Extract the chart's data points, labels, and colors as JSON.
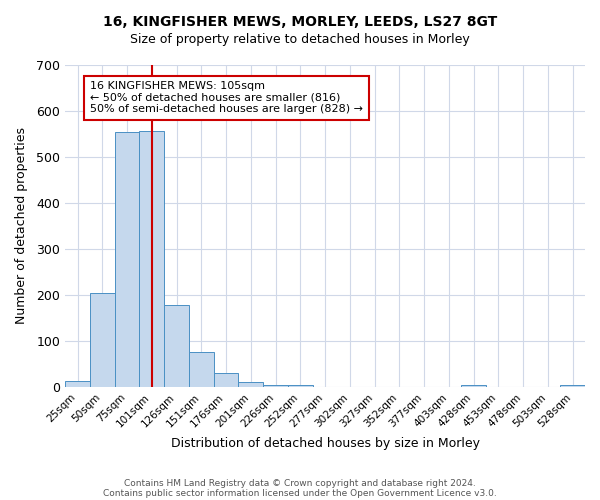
{
  "title": "16, KINGFISHER MEWS, MORLEY, LEEDS, LS27 8GT",
  "subtitle": "Size of property relative to detached houses in Morley",
  "xlabel": "Distribution of detached houses by size in Morley",
  "ylabel": "Number of detached properties",
  "bin_labels": [
    "25sqm",
    "50sqm",
    "75sqm",
    "101sqm",
    "126sqm",
    "151sqm",
    "176sqm",
    "201sqm",
    "226sqm",
    "252sqm",
    "277sqm",
    "302sqm",
    "327sqm",
    "352sqm",
    "377sqm",
    "403sqm",
    "428sqm",
    "453sqm",
    "478sqm",
    "503sqm",
    "528sqm"
  ],
  "bar_values": [
    12,
    204,
    554,
    557,
    178,
    75,
    30,
    11,
    5,
    5,
    0,
    0,
    0,
    0,
    0,
    0,
    5,
    0,
    0,
    0,
    5
  ],
  "bar_color": "#c5d8ed",
  "bar_edge_color": "#4a90c4",
  "vline_x": 3,
  "vline_color": "#cc0000",
  "annotation_text": "16 KINGFISHER MEWS: 105sqm\n← 50% of detached houses are smaller (816)\n50% of semi-detached houses are larger (828) →",
  "annotation_box_color": "#ffffff",
  "annotation_box_edge": "#cc0000",
  "ylim": [
    0,
    700
  ],
  "yticks": [
    0,
    100,
    200,
    300,
    400,
    500,
    600,
    700
  ],
  "footer_line1": "Contains HM Land Registry data © Crown copyright and database right 2024.",
  "footer_line2": "Contains public sector information licensed under the Open Government Licence v3.0.",
  "background_color": "#ffffff",
  "grid_color": "#d0d8e8"
}
